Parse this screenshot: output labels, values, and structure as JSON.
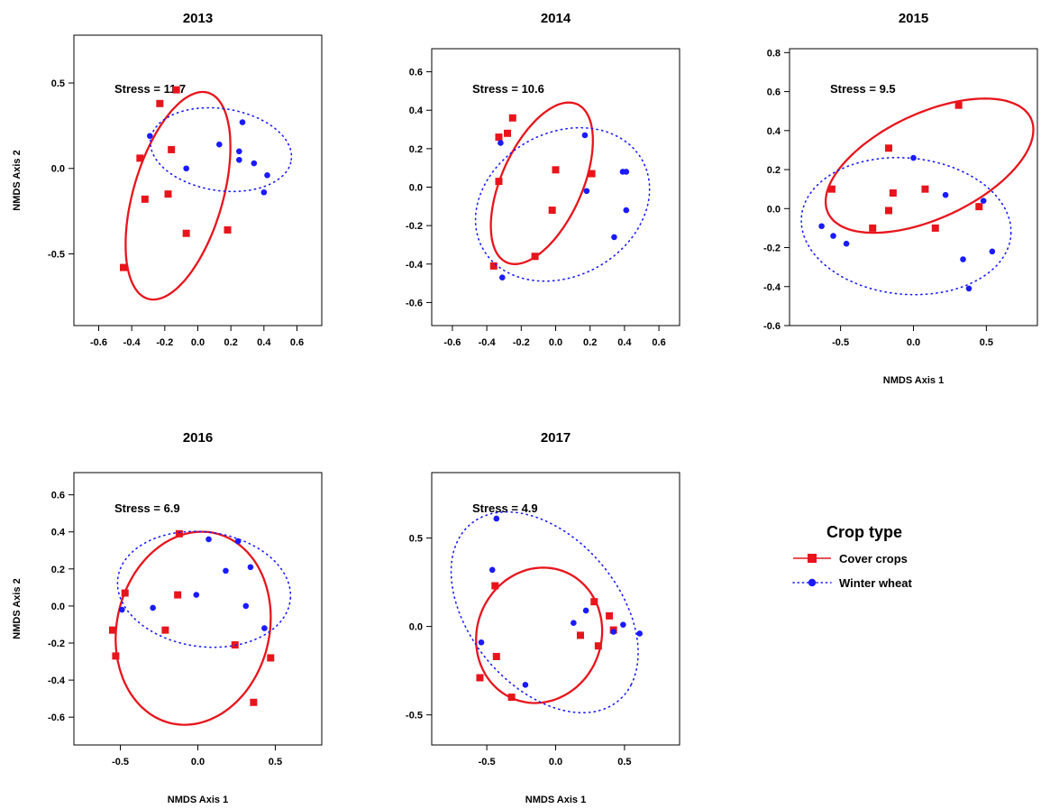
{
  "colors": {
    "cover": "#e8141c",
    "wheat": "#1a1aff",
    "axis": "#000000"
  },
  "legend": {
    "title": "Crop type",
    "entries": [
      {
        "label": "Cover crops",
        "series": "cover"
      },
      {
        "label": "Winter wheat",
        "series": "wheat"
      }
    ]
  },
  "chart_data": [
    {
      "type": "scatter",
      "title": "2013",
      "stress_label": "Stress = 11.7",
      "xlabel": "",
      "ylabel": "NMDS Axis 2",
      "xlim": [
        -0.75,
        0.75
      ],
      "ylim": [
        -0.92,
        0.78
      ],
      "xticks": [
        -0.6,
        -0.4,
        -0.2,
        0.0,
        0.2,
        0.4,
        0.6
      ],
      "xtick_labels": [
        "-0.6",
        "-0.4",
        "-0.2",
        "0.0",
        "0.2",
        "0.4",
        "0.6"
      ],
      "yticks": [
        -0.5,
        0.0,
        0.5
      ],
      "ytick_labels": [
        "-0.5",
        "0.0",
        "0.5"
      ],
      "series": [
        {
          "key": "cover",
          "marker": "square",
          "ellipse": "solid",
          "x": [
            -0.13,
            -0.23,
            -0.35,
            -0.16,
            -0.32,
            -0.18,
            -0.07,
            0.18,
            -0.45
          ],
          "y": [
            0.46,
            0.38,
            0.06,
            0.11,
            -0.18,
            -0.15,
            -0.38,
            -0.36,
            -0.58
          ],
          "ellipse_params": {
            "cx": -0.12,
            "cy": -0.16,
            "rx": 0.63,
            "ry": 0.27,
            "angle_deg": 73
          }
        },
        {
          "key": "wheat",
          "marker": "circle",
          "ellipse": "dotted",
          "x": [
            -0.29,
            0.27,
            0.13,
            0.25,
            0.25,
            0.34,
            0.42,
            0.4,
            -0.07
          ],
          "y": [
            0.19,
            0.27,
            0.14,
            0.1,
            0.05,
            0.03,
            -0.04,
            -0.14,
            0.0
          ],
          "ellipse_params": {
            "cx": 0.14,
            "cy": 0.11,
            "rx": 0.43,
            "ry": 0.24,
            "angle_deg": -8
          }
        }
      ]
    },
    {
      "type": "scatter",
      "title": "2014",
      "stress_label": "Stress = 10.6",
      "xlabel": "",
      "ylabel": "",
      "xlim": [
        -0.72,
        0.72
      ],
      "ylim": [
        -0.72,
        0.72
      ],
      "xticks": [
        -0.6,
        -0.4,
        -0.2,
        0.0,
        0.2,
        0.4,
        0.6
      ],
      "xtick_labels": [
        "-0.6",
        "-0.4",
        "-0.2",
        "0.0",
        "0.2",
        "0.4",
        "0.6"
      ],
      "yticks": [
        -0.6,
        -0.4,
        -0.2,
        0.0,
        0.2,
        0.4,
        0.6
      ],
      "ytick_labels": [
        "-0.6",
        "-0.4",
        "-0.2",
        "0.0",
        "0.2",
        "0.4",
        "0.6"
      ],
      "series": [
        {
          "key": "cover",
          "marker": "square",
          "ellipse": "solid",
          "x": [
            -0.25,
            -0.33,
            -0.28,
            0.0,
            -0.33,
            0.21,
            -0.02,
            -0.12,
            -0.36
          ],
          "y": [
            0.36,
            0.26,
            0.28,
            0.09,
            0.03,
            0.07,
            -0.12,
            -0.36,
            -0.41
          ],
          "ellipse_params": {
            "cx": -0.08,
            "cy": 0.02,
            "rx": 0.46,
            "ry": 0.23,
            "angle_deg": 62
          }
        },
        {
          "key": "wheat",
          "marker": "circle",
          "ellipse": "dotted",
          "x": [
            0.17,
            -0.32,
            0.39,
            0.41,
            0.18,
            0.41,
            0.34,
            -0.31
          ],
          "y": [
            0.27,
            0.23,
            0.08,
            0.08,
            -0.02,
            -0.12,
            -0.26,
            -0.47
          ],
          "ellipse_params": {
            "cx": 0.04,
            "cy": -0.09,
            "rx": 0.52,
            "ry": 0.38,
            "angle_deg": 20
          }
        }
      ]
    },
    {
      "type": "scatter",
      "title": "2015",
      "stress_label": "Stress = 9.5",
      "xlabel": "NMDS Axis 1",
      "ylabel": "",
      "xlim": [
        -0.85,
        0.85
      ],
      "ylim": [
        -0.6,
        0.82
      ],
      "xticks": [
        -0.5,
        0.0,
        0.5
      ],
      "xtick_labels": [
        "-0.5",
        "0.0",
        "0.5"
      ],
      "yticks": [
        -0.6,
        -0.4,
        -0.2,
        0.0,
        0.2,
        0.4,
        0.6,
        0.8
      ],
      "ytick_labels": [
        "-0.6",
        "-0.4",
        "-0.2",
        "0.0",
        "0.2",
        "0.4",
        "0.6",
        "0.8"
      ],
      "series": [
        {
          "key": "cover",
          "marker": "square",
          "ellipse": "solid",
          "x": [
            0.31,
            -0.17,
            0.08,
            -0.56,
            -0.14,
            -0.17,
            0.45,
            -0.28,
            0.15
          ],
          "y": [
            0.53,
            0.31,
            0.1,
            0.1,
            0.08,
            -0.01,
            0.01,
            -0.1,
            -0.1
          ],
          "ellipse_params": {
            "cx": 0.11,
            "cy": 0.22,
            "rx": 0.74,
            "ry": 0.28,
            "angle_deg": 17
          }
        },
        {
          "key": "wheat",
          "marker": "circle",
          "ellipse": "dotted",
          "x": [
            0.0,
            0.22,
            0.48,
            -0.63,
            -0.55,
            -0.46,
            0.54,
            0.34,
            0.38
          ],
          "y": [
            0.26,
            0.07,
            0.04,
            -0.09,
            -0.14,
            -0.18,
            -0.22,
            -0.26,
            -0.41
          ],
          "ellipse_params": {
            "cx": -0.05,
            "cy": -0.09,
            "rx": 0.72,
            "ry": 0.35,
            "angle_deg": -3
          }
        }
      ]
    },
    {
      "type": "scatter",
      "title": "2016",
      "stress_label": "Stress = 6.9",
      "xlabel": "NMDS Axis 1",
      "ylabel": "NMDS Axis 2",
      "xlim": [
        -0.8,
        0.8
      ],
      "ylim": [
        -0.75,
        0.72
      ],
      "xticks": [
        -0.5,
        0.0,
        0.5
      ],
      "xtick_labels": [
        "-0.5",
        "0.0",
        "0.5"
      ],
      "yticks": [
        -0.6,
        -0.4,
        -0.2,
        0.0,
        0.2,
        0.4,
        0.6
      ],
      "ytick_labels": [
        "-0.6",
        "-0.4",
        "-0.2",
        "0.0",
        "0.2",
        "0.4",
        "0.6"
      ],
      "series": [
        {
          "key": "cover",
          "marker": "square",
          "ellipse": "solid",
          "x": [
            -0.12,
            -0.47,
            -0.55,
            -0.21,
            -0.13,
            -0.53,
            0.24,
            0.47,
            0.36
          ],
          "y": [
            0.39,
            0.07,
            -0.13,
            -0.13,
            0.06,
            -0.27,
            -0.21,
            -0.28,
            -0.52
          ],
          "ellipse_params": {
            "cx": -0.03,
            "cy": -0.12,
            "rx": 0.54,
            "ry": 0.48,
            "angle_deg": 55
          }
        },
        {
          "key": "wheat",
          "marker": "circle",
          "ellipse": "dotted",
          "x": [
            0.07,
            0.26,
            0.34,
            0.18,
            -0.01,
            -0.29,
            0.31,
            -0.49,
            0.43
          ],
          "y": [
            0.36,
            0.35,
            0.21,
            0.19,
            0.06,
            -0.01,
            0.0,
            -0.02,
            -0.12
          ],
          "ellipse_params": {
            "cx": 0.04,
            "cy": 0.09,
            "rx": 0.56,
            "ry": 0.31,
            "angle_deg": -5
          }
        }
      ]
    },
    {
      "type": "scatter",
      "title": "2017",
      "stress_label": "Stress = 4.9",
      "xlabel": "NMDS Axis 1",
      "ylabel": "",
      "xlim": [
        -0.9,
        0.9
      ],
      "ylim": [
        -0.67,
        0.87
      ],
      "xticks": [
        -0.5,
        0.0,
        0.5
      ],
      "xtick_labels": [
        "-0.5",
        "0.0",
        "0.5"
      ],
      "yticks": [
        -0.5,
        0.0,
        0.5
      ],
      "ytick_labels": [
        "-0.5",
        "0.0",
        "0.5"
      ],
      "series": [
        {
          "key": "cover",
          "marker": "square",
          "ellipse": "solid",
          "x": [
            -0.44,
            0.28,
            0.39,
            0.18,
            0.31,
            0.42,
            -0.43,
            -0.55,
            -0.32
          ],
          "y": [
            0.23,
            0.14,
            0.06,
            -0.05,
            -0.11,
            -0.02,
            -0.17,
            -0.29,
            -0.4
          ],
          "ellipse_params": {
            "cx": -0.12,
            "cy": -0.05,
            "rx": 0.46,
            "ry": 0.38,
            "angle_deg": 10
          }
        },
        {
          "key": "wheat",
          "marker": "circle",
          "ellipse": "dotted",
          "x": [
            -0.43,
            -0.46,
            0.13,
            0.22,
            0.49,
            0.42,
            0.61,
            -0.54,
            -0.22
          ],
          "y": [
            0.61,
            0.32,
            0.02,
            0.09,
            0.01,
            -0.03,
            -0.04,
            -0.09,
            -0.33
          ],
          "ellipse_params": {
            "cx": -0.08,
            "cy": 0.08,
            "rx": 0.75,
            "ry": 0.47,
            "angle_deg": -33
          }
        }
      ]
    }
  ]
}
